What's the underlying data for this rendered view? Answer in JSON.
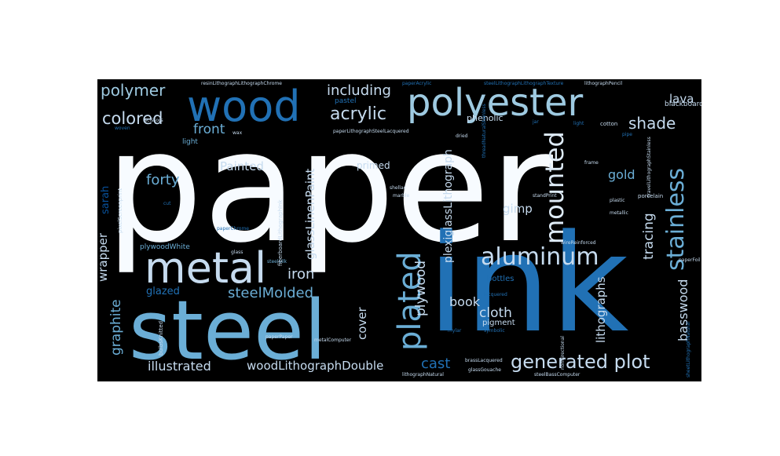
{
  "colors": {
    "background": "#000000",
    "white": "#f7fbff",
    "light_blue": "#c6dbef",
    "mid_blue": "#6baed6",
    "blue": "#2171b5",
    "dark_blue": "#08519c"
  },
  "words": {
    "paper": "paper",
    "ink": "ink",
    "steel": "steel",
    "wood": "wood",
    "polyester": "polyester",
    "metal": "metal",
    "aluminum": "aluminum",
    "plated": "plated",
    "mounted": "mounted",
    "stainless": "stainless",
    "generated_plot": "generated plot",
    "polymer": "polymer",
    "including": "including",
    "acrylic": "acrylic",
    "colored": "colored",
    "front": "front",
    "shade": "shade",
    "painted": "Painted",
    "forty": "forty",
    "iron": "iron",
    "steelmolded": "steelMolded",
    "glazed": "glazed",
    "illustrated": "illustrated",
    "woodlithographdouble": "woodLithographDouble",
    "cast": "cast",
    "book": "book",
    "cloth": "cloth",
    "cover": "cover",
    "plywood": "plywood",
    "gimp": "gimp",
    "gold": "gold",
    "tracing": "tracing",
    "lithographs": "lithographs",
    "basswood": "basswood",
    "lava": "lava",
    "graphite": "graphite",
    "wrapper": "wrapper",
    "glasslinenpaint": "glassLinenPaint",
    "plexiglasslithograph": "plexiglassLithograph",
    "primed": "primed",
    "phenolic": "phenolic",
    "pastel": "pastel",
    "blackboard": "blackboard",
    "sarah": "sarah",
    "plywoodwhite": "plywoodWhite",
    "pigment": "pigment",
    "bottles": "bottles",
    "porcelain": "porcelain",
    "light": "light",
    "cotton": "cotton",
    "dried": "dried",
    "plastic": "plastic",
    "metallic": "metallic",
    "resinlithographlithographchrome": "resinLithographLithographChrome",
    "paperacrylic": "paperAcrylic",
    "steellithographlithographtexture": "steelLithographLithographTexture",
    "lithographpencil": "lithographPencil",
    "paperlithographsteellacquered": "paperLithographSteelLacquered",
    "paperchrome": "paperChrome",
    "steelsilk": "steelSilk",
    "brasslacquered": "brassLacquered",
    "glassgouache": "glassGouache",
    "lithographnatural": "lithographNatural",
    "steelbasscomputer": "steelBassComputer",
    "metalcomputer": "metalComputer",
    "paperpaper": "paperPaper",
    "bulbsknitted": "bulbsKnitted",
    "pixelscreenprint": "pixelScreenprint",
    "fiberboardlithographink": "fiberboardLithographInk",
    "shellac": "shellac",
    "marble": "marble",
    "standprint": "standPrint",
    "wirereinforced": "wireReinforced",
    "paperfoil": "paperFoil",
    "nondirectional": "nondirectional",
    "symbolic": "symbolic",
    "lacquered": "lacquered",
    "wax": "wax",
    "glass": "glass",
    "frame": "frame",
    "woven": "woven",
    "pipe": "pipe",
    "jar": "jar",
    "cut": "cut",
    "scissors": "scissors",
    "mylar": "mylar",
    "threadnaturalstainless": "threadNaturalStainless",
    "travellithographstainless": "travelLithographStainless",
    "sheetlithographnatural": "sheetLithographNatural"
  }
}
